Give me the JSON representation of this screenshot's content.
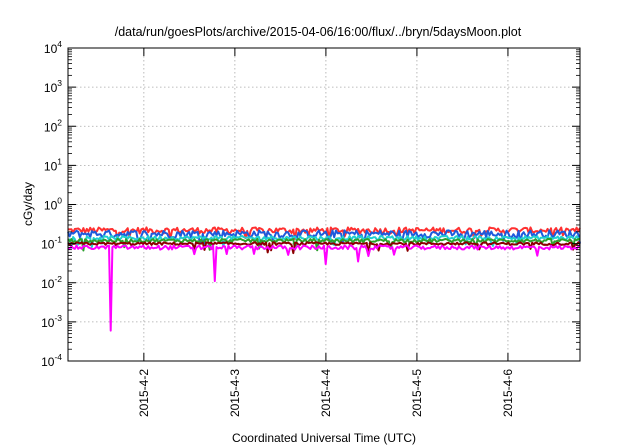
{
  "chart_data": {
    "type": "line",
    "title": "/data/run/goesPlots/archive/2015-04-06/16:00/flux/../bryn/5daysMoon.plot",
    "xlabel": "Coordinated Universal Time (UTC)",
    "ylabel": "cGy/day",
    "yscale": "log",
    "ylim": [
      0.0001,
      10000
    ],
    "xlim": [
      "2015-04-01T04:00",
      "2015-04-06T19:00"
    ],
    "x_ticks": [
      "2015-04-02",
      "2015-04-03",
      "2015-04-04",
      "2015-04-05",
      "2015-04-06"
    ],
    "x_tick_labels": [
      "2015-4-2",
      "2015-4-3",
      "2015-4-4",
      "2015-4-5",
      "2015-4-6"
    ],
    "y_tick_exponents": [
      -4,
      -3,
      -2,
      -1,
      0,
      1,
      2,
      3,
      4
    ],
    "y_tick_base": "10",
    "grid": true,
    "series": [
      {
        "color": "#ff3030",
        "baseline": 0.22,
        "jitter": 0.18
      },
      {
        "color": "#1e5adc",
        "baseline": 0.18,
        "jitter": 0.22
      },
      {
        "color": "#20d0d0",
        "baseline": 0.14,
        "jitter": 0.12
      },
      {
        "color": "#2ca02c",
        "baseline": 0.12,
        "jitter": 0.1
      },
      {
        "color": "#8b0000",
        "baseline": 0.1,
        "jitter": 0.08
      },
      {
        "color": "#ff00ff",
        "baseline": 0.08,
        "jitter": 0.12,
        "dips": [
          {
            "x": "2015-04-01T15:10",
            "value": 0.0006
          },
          {
            "x": "2015-04-02T18:30",
            "value": 0.011
          },
          {
            "x": "2015-04-03T23:50",
            "value": 0.03
          },
          {
            "x": "2015-04-04T08:40",
            "value": 0.035
          }
        ]
      }
    ]
  }
}
